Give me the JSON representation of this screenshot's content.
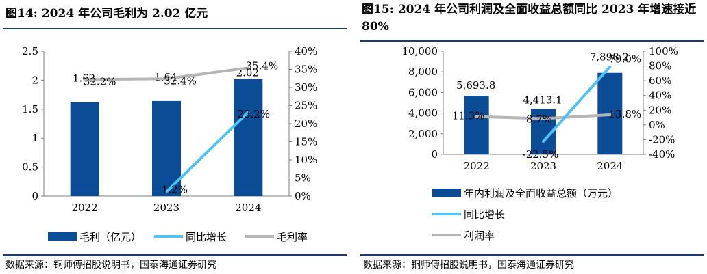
{
  "charts": {
    "left": {
      "title": "图14:  2024 年公司毛利为 2.02 亿元",
      "source": "数据来源：铜师傅招股说明书，国泰海通证券研究"
    },
    "right": {
      "title": "图15:  2024 年公司利润及全面收益总额同比 2023 年增速接近 80%",
      "source": "数据来源：铜师傅招股说明书，国泰海通证券研究"
    }
  },
  "chart_data": [
    {
      "type": "bar",
      "categories": [
        "2022",
        "2023",
        "2024"
      ],
      "series": [
        {
          "name": "毛利（亿元）",
          "type": "bar",
          "axis": "left",
          "values": [
            1.62,
            1.64,
            2.02
          ],
          "labels": [
            "1.62",
            "1.64",
            "2.02"
          ],
          "color": "#0b4c96"
        },
        {
          "name": "同比增长",
          "type": "line",
          "axis": "right",
          "values": [
            null,
            1.2,
            23.2
          ],
          "labels": [
            "",
            "1.2%",
            "23.2%"
          ],
          "color": "#4fc3f7"
        },
        {
          "name": "毛利率",
          "type": "line",
          "axis": "right",
          "values": [
            32.2,
            32.4,
            35.4
          ],
          "labels": [
            "32.2%",
            "32.4%",
            "35.4%"
          ],
          "color": "#b5b5b5"
        }
      ],
      "left_axis": {
        "ylim": [
          0,
          2.5
        ],
        "ticks": [
          "0",
          "0.5",
          "1",
          "1.5",
          "2",
          "2.5"
        ]
      },
      "right_axis": {
        "ylim": [
          0,
          40
        ],
        "ticks": [
          "0%",
          "5%",
          "10%",
          "15%",
          "20%",
          "25%",
          "30%",
          "35%",
          "40%"
        ]
      },
      "legend": "bottom",
      "grid": false
    },
    {
      "type": "bar",
      "categories": [
        "2022",
        "2023",
        "2024"
      ],
      "series": [
        {
          "name": "年内利润及全面收益总额（万元）",
          "type": "bar",
          "axis": "left",
          "values": [
            5693.8,
            4413.1,
            7898.2
          ],
          "labels": [
            "5,693.8",
            "4,413.1",
            "7,898.2"
          ],
          "color": "#0b4c96"
        },
        {
          "name": "同比增长",
          "type": "line",
          "axis": "right",
          "values": [
            null,
            -22.5,
            79.0
          ],
          "labels": [
            "",
            "-22.5%",
            "79.0%"
          ],
          "color": "#4fc3f7"
        },
        {
          "name": "利润率",
          "type": "line",
          "axis": "right",
          "values": [
            11.3,
            8.7,
            13.8
          ],
          "labels": [
            "11.3%",
            "8.7%",
            "13.8%"
          ],
          "color": "#b5b5b5"
        }
      ],
      "left_axis": {
        "ylim": [
          0,
          10000
        ],
        "ticks": [
          "0",
          "2,000",
          "4,000",
          "6,000",
          "8,000",
          "10,000"
        ]
      },
      "right_axis": {
        "ylim": [
          -40,
          100
        ],
        "ticks": [
          "-40%",
          "-20%",
          "0%",
          "20%",
          "40%",
          "60%",
          "80%",
          "100%"
        ]
      },
      "legend": "bottom",
      "grid": false
    }
  ]
}
